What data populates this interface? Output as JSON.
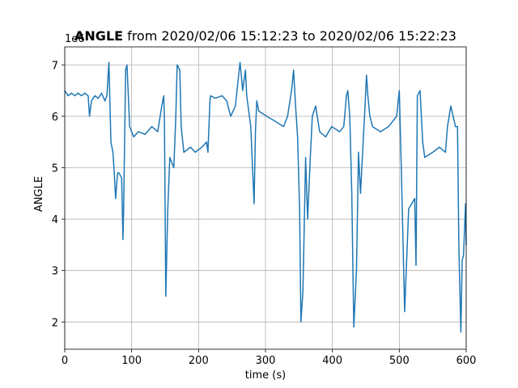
{
  "chart_data": {
    "type": "line",
    "title": {
      "bold": "ANGLE",
      "rest": "from 2020/02/06 15:12:23 to 2020/02/06 15:22:23"
    },
    "y_offset_label": "1e6",
    "xlabel": "time (s)",
    "ylabel": "ANGLE",
    "x": [
      0,
      5,
      10,
      15,
      20,
      25,
      30,
      35,
      37,
      40,
      45,
      50,
      55,
      60,
      63,
      66,
      69,
      72,
      74,
      76,
      79,
      81,
      85,
      87,
      88,
      91,
      93,
      97,
      103,
      110,
      120,
      130,
      139,
      145,
      148,
      149,
      151,
      154,
      157,
      163,
      166,
      168,
      172,
      174,
      178,
      188,
      195,
      205,
      212,
      214,
      217,
      218,
      225,
      235,
      242,
      248,
      255,
      262,
      266,
      270,
      272,
      278,
      283,
      285,
      287,
      290,
      302,
      315,
      327,
      333,
      339,
      342,
      345,
      348,
      351,
      353,
      356,
      360,
      363,
      367,
      370,
      375,
      381,
      390,
      399,
      411,
      417,
      421,
      423,
      426,
      429,
      432,
      436,
      439,
      442,
      448,
      451,
      453,
      456,
      460,
      472,
      484,
      496,
      500,
      503,
      508,
      514,
      523,
      525,
      527,
      531,
      535,
      538,
      550,
      560,
      569,
      572,
      577,
      584,
      587,
      589,
      592,
      594,
      596,
      599,
      600
    ],
    "series": [
      {
        "color": "#1f77b4",
        "values": [
          6.5,
          6.4,
          6.45,
          6.4,
          6.45,
          6.4,
          6.45,
          6.4,
          6.0,
          6.3,
          6.4,
          6.35,
          6.45,
          6.3,
          6.4,
          7.05,
          5.5,
          5.3,
          4.9,
          4.4,
          4.9,
          4.9,
          4.8,
          3.6,
          4.2,
          6.9,
          7.0,
          5.8,
          5.6,
          5.7,
          5.65,
          5.8,
          5.7,
          6.2,
          6.4,
          5.9,
          2.5,
          4.2,
          5.2,
          5.0,
          6.0,
          7.0,
          6.9,
          5.8,
          5.3,
          5.4,
          5.3,
          5.4,
          5.5,
          5.3,
          6.3,
          6.4,
          6.35,
          6.4,
          6.3,
          6.0,
          6.2,
          7.05,
          6.5,
          6.9,
          6.4,
          5.8,
          4.3,
          5.7,
          6.3,
          6.1,
          6.0,
          5.9,
          5.8,
          6.0,
          6.5,
          6.9,
          6.2,
          5.6,
          4.2,
          2.0,
          2.6,
          5.2,
          4.0,
          5.2,
          6.0,
          6.2,
          5.7,
          5.6,
          5.8,
          5.7,
          5.8,
          6.4,
          6.5,
          6.0,
          4.5,
          1.9,
          3.0,
          5.3,
          4.5,
          6.0,
          6.8,
          6.4,
          6.0,
          5.8,
          5.7,
          5.8,
          6.0,
          6.5,
          5.0,
          2.2,
          4.2,
          4.4,
          3.1,
          6.4,
          6.5,
          5.5,
          5.2,
          5.3,
          5.4,
          5.3,
          5.8,
          6.2,
          5.8,
          5.8,
          3.5,
          1.8,
          3.2,
          3.3,
          4.3,
          3.5
        ]
      }
    ],
    "xlim": [
      0,
      600
    ],
    "xticks": [
      0,
      100,
      200,
      300,
      400,
      500,
      600
    ],
    "ylim": [
      1.47,
      7.35
    ],
    "yticks": [
      2,
      3,
      4,
      5,
      6,
      7
    ],
    "grid": true
  }
}
